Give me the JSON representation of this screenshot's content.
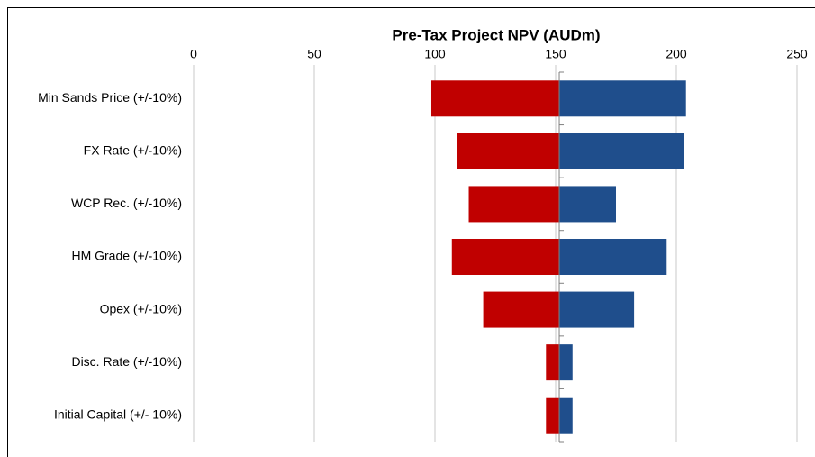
{
  "chart_data": {
    "type": "tornado",
    "title": "Pre-Tax Project NPV (AUDm)",
    "categories": [
      "Min Sands Price (+/-10%)",
      "FX Rate (+/-10%)",
      "WCP Rec. (+/-10%)",
      "HM Grade (+/-10%)",
      "Opex (+/-10%)",
      "Disc. Rate (+/-10%)",
      "Initial Capital (+/- 10%)"
    ],
    "base": 151.5,
    "series": [
      {
        "color": "#c00000",
        "values": [
          98.5,
          109,
          114,
          107,
          120,
          146,
          146
        ]
      },
      {
        "color": "#1f4e8c",
        "values": [
          204,
          203,
          175,
          196,
          182.5,
          157,
          157
        ]
      }
    ],
    "xlim": [
      0,
      250
    ],
    "xticks": [
      0,
      50,
      100,
      150,
      200,
      250
    ],
    "grid": true
  }
}
